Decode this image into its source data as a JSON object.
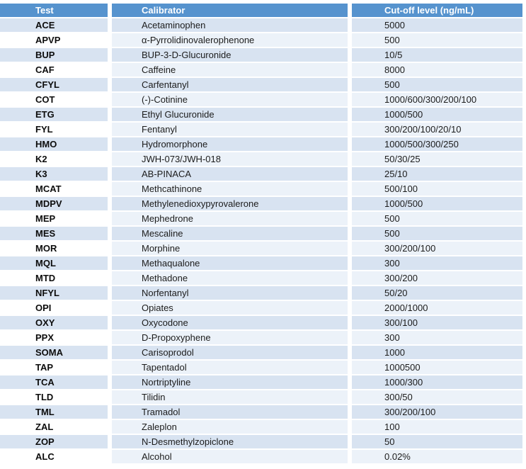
{
  "table": {
    "columns": [
      {
        "label": "Test"
      },
      {
        "label": "Calibrator"
      },
      {
        "label": "Cut-off level (ng/mL)"
      }
    ],
    "rows": [
      [
        "ACE",
        "Acetaminophen",
        "5000"
      ],
      [
        "APVP",
        "α-Pyrrolidinovalerophenone",
        "500"
      ],
      [
        "BUP",
        "BUP-3-D-Glucuronide",
        "10/5"
      ],
      [
        "CAF",
        "Caffeine",
        "8000"
      ],
      [
        "CFYL",
        "Carfentanyl",
        "500"
      ],
      [
        "COT",
        "(-)-Cotinine",
        "1000/600/300/200/100"
      ],
      [
        "ETG",
        "Ethyl Glucuronide",
        "1000/500"
      ],
      [
        "FYL",
        "Fentanyl",
        "300/200/100/20/10"
      ],
      [
        "HMO",
        "Hydromorphone",
        "1000/500/300/250"
      ],
      [
        "K2",
        "JWH-073/JWH-018",
        "50/30/25"
      ],
      [
        "K3",
        "AB-PINACA",
        "25/10"
      ],
      [
        "MCAT",
        "Methcathinone",
        "500/100"
      ],
      [
        "MDPV",
        "Methylenedioxypyrovalerone",
        "1000/500"
      ],
      [
        "MEP",
        "Mephedrone",
        "500"
      ],
      [
        "MES",
        "Mescaline",
        "500"
      ],
      [
        "MOR",
        "Morphine",
        "300/200/100"
      ],
      [
        "MQL",
        "Methaqualone",
        "300"
      ],
      [
        "MTD",
        "Methadone",
        "300/200"
      ],
      [
        "NFYL",
        "Norfentanyl",
        "50/20"
      ],
      [
        "OPI",
        "Opiates",
        "2000/1000"
      ],
      [
        "OXY",
        "Oxycodone",
        "300/100"
      ],
      [
        "PPX",
        "D-Propoxyphene",
        "300"
      ],
      [
        "SOMA",
        "Carisoprodol",
        "1000"
      ],
      [
        "TAP",
        "Tapentadol",
        "1000500"
      ],
      [
        "TCA",
        "Nortriptyline",
        "1000/300"
      ],
      [
        "TLD",
        "Tilidin",
        "300/50"
      ],
      [
        "TML",
        "Tramadol",
        "300/200/100"
      ],
      [
        "ZAL",
        "Zaleplon",
        "100"
      ],
      [
        "ZOP",
        "N-Desmethylzopiclone",
        "50"
      ],
      [
        "ALC",
        "Alcohol",
        "0.02%"
      ]
    ],
    "colors": {
      "header_bg": "#5693ce",
      "header_text": "#ffffff",
      "band_blue": "#d8e3f1",
      "band_faint": "#ecf2f9",
      "band_white": "#ffffff",
      "body_text": "#1c1c1c",
      "test_text": "#0d0d0d"
    }
  }
}
